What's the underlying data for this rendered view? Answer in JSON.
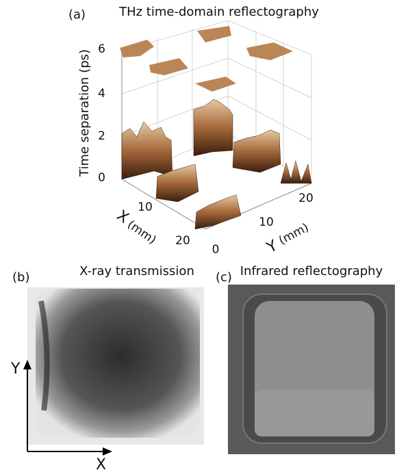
{
  "panels": {
    "a": {
      "label": "(a)",
      "title": "THz time-domain reflectography",
      "z_axis": {
        "label": "Time separation (ps)",
        "ticks": [
          0,
          2,
          4,
          6
        ]
      },
      "x_axis": {
        "label": "X",
        "unit": "(mm)",
        "ticks": [
          10,
          20
        ]
      },
      "y_axis": {
        "label": "Y",
        "unit": "(mm)",
        "ticks": [
          0,
          10,
          20
        ]
      }
    },
    "b": {
      "label": "(b)",
      "title": "X-ray transmission",
      "y_arrow": "Y",
      "x_arrow": "X"
    },
    "c": {
      "label": "(c)",
      "title": "Infrared reflectography"
    }
  }
}
